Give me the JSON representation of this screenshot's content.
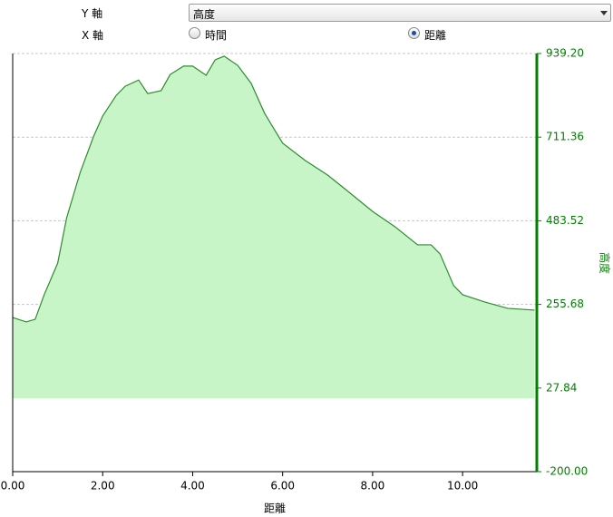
{
  "controls": {
    "y_axis_label": "Y 軸",
    "y_axis_value": "高度",
    "x_axis_label": "X 軸",
    "x_axis_options": [
      "時間",
      "距離"
    ]
  },
  "chart_data": {
    "type": "area",
    "x_label": "距離",
    "y_label": "高度",
    "x": [
      0,
      0.3,
      0.5,
      0.7,
      1.0,
      1.2,
      1.5,
      1.8,
      2.0,
      2.3,
      2.5,
      2.8,
      3.0,
      3.3,
      3.5,
      3.8,
      4.0,
      4.3,
      4.5,
      4.7,
      5.0,
      5.3,
      5.6,
      6.0,
      6.5,
      7.0,
      7.5,
      8.0,
      8.5,
      9.0,
      9.3,
      9.5,
      9.8,
      10.0,
      10.5,
      11.0,
      11.6
    ],
    "values": [
      220,
      208,
      215,
      282,
      368,
      492,
      615,
      714,
      769,
      825,
      850,
      867,
      830,
      838,
      882,
      905,
      905,
      880,
      922,
      932,
      907,
      858,
      776,
      695,
      648,
      608,
      559,
      509,
      467,
      418,
      418,
      393,
      307,
      282,
      262,
      245,
      240
    ],
    "color": "#2e8b2e",
    "fill": "#c8f5c8",
    "axis_color": "#008000",
    "xlim": [
      0,
      11.65
    ],
    "xticks": [
      {
        "value": 0,
        "label": "0.00"
      },
      {
        "value": 2,
        "label": "2.00"
      },
      {
        "value": 4,
        "label": "4.00"
      },
      {
        "value": 6,
        "label": "6.00"
      },
      {
        "value": 8,
        "label": "8.00"
      },
      {
        "value": 10,
        "label": "10.00"
      }
    ],
    "ylim": [
      -200,
      939.2
    ],
    "yticks": [
      {
        "value": -200,
        "label": "-200.00"
      },
      27.84,
      255.68,
      483.52,
      711.36,
      {
        "value": 939.2,
        "label": "939.20"
      }
    ],
    "grid": true
  }
}
